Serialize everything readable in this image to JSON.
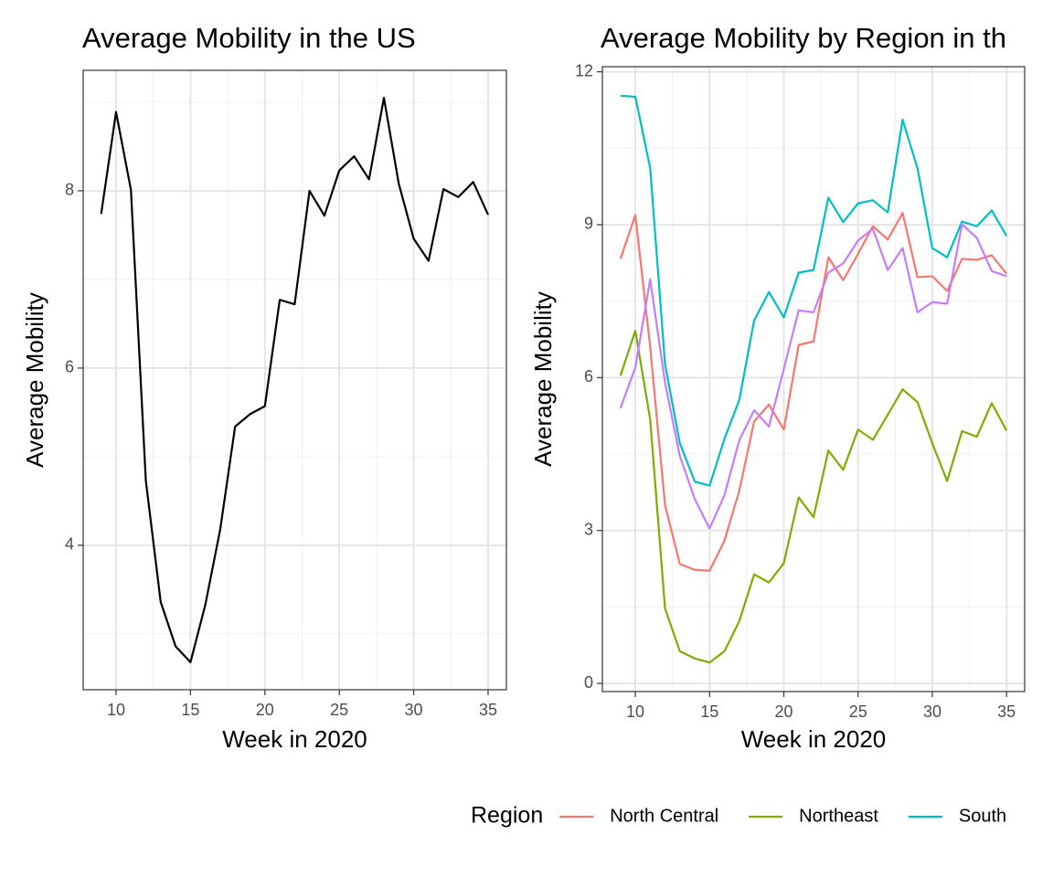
{
  "chart_data": [
    {
      "type": "line",
      "title": "Average Mobility in the US",
      "x_label": "Week in 2020",
      "y_label": "Average Mobility",
      "x": [
        9,
        10,
        11,
        12,
        13,
        14,
        15,
        16,
        17,
        18,
        19,
        20,
        21,
        22,
        23,
        24,
        25,
        26,
        27,
        28,
        29,
        30,
        31,
        32,
        33,
        34,
        35
      ],
      "values": [
        7.74,
        8.89,
        8.01,
        4.73,
        3.36,
        2.86,
        2.68,
        3.33,
        4.18,
        5.34,
        5.48,
        5.57,
        6.77,
        6.72,
        8.0,
        7.72,
        8.23,
        8.39,
        8.13,
        9.05,
        8.08,
        7.46,
        7.21,
        8.02,
        7.93,
        8.1,
        7.73
      ],
      "color": "#000000",
      "xlim": [
        7.79,
        36.23
      ],
      "ylim": [
        2.37,
        9.36
      ],
      "xticks": [
        10,
        15,
        20,
        25,
        30,
        35
      ],
      "yticks": [
        4,
        6,
        8
      ],
      "grid": true
    },
    {
      "type": "line",
      "title": "Average Mobility by Region in th",
      "x_label": "Week in 2020",
      "y_label": "Average Mobility",
      "x": [
        9,
        10,
        11,
        12,
        13,
        14,
        15,
        16,
        17,
        18,
        19,
        20,
        21,
        22,
        23,
        24,
        25,
        26,
        27,
        28,
        29,
        30,
        31,
        32,
        33,
        34,
        35
      ],
      "series": [
        {
          "name": "North Central",
          "color": "#F8766D",
          "values": [
            8.33,
            9.19,
            6.6,
            3.5,
            2.34,
            2.23,
            2.21,
            2.8,
            3.78,
            5.14,
            5.47,
            4.98,
            6.64,
            6.71,
            8.36,
            7.91,
            8.43,
            8.97,
            8.71,
            9.23,
            7.97,
            7.99,
            7.7,
            8.33,
            8.31,
            8.4,
            8.04
          ]
        },
        {
          "name": "Northeast",
          "color": "#7CAE00",
          "values": [
            6.04,
            6.92,
            5.18,
            1.47,
            0.63,
            0.49,
            0.41,
            0.63,
            1.22,
            2.14,
            1.98,
            2.36,
            3.65,
            3.26,
            4.57,
            4.19,
            4.98,
            4.78,
            5.27,
            5.77,
            5.52,
            4.71,
            3.97,
            4.95,
            4.84,
            5.5,
            4.96
          ]
        },
        {
          "name": "South",
          "color": "#00BFC4",
          "values": [
            11.53,
            11.51,
            10.11,
            6.26,
            4.71,
            3.96,
            3.88,
            4.8,
            5.56,
            7.12,
            7.68,
            7.18,
            8.06,
            8.11,
            9.53,
            9.05,
            9.42,
            9.48,
            9.24,
            11.06,
            10.11,
            8.54,
            8.36,
            9.06,
            8.97,
            9.28,
            8.78
          ]
        },
        {
          "color": "#C77CFF",
          "values": [
            5.4,
            6.2,
            7.93,
            5.9,
            4.46,
            3.62,
            3.04,
            3.69,
            4.77,
            5.36,
            5.04,
            6.17,
            7.32,
            7.28,
            8.06,
            8.24,
            8.69,
            8.92,
            8.11,
            8.54,
            7.28,
            7.48,
            7.45,
            9.01,
            8.74,
            8.09,
            7.99
          ]
        }
      ],
      "legend_title": "Region",
      "legend_position": "bottom",
      "xlim": [
        7.78,
        36.22
      ],
      "ylim": [
        -0.16,
        12.1
      ],
      "xticks": [
        10,
        15,
        20,
        25,
        30,
        35
      ],
      "yticks": [
        0,
        3,
        6,
        9,
        12
      ],
      "grid": true
    }
  ]
}
